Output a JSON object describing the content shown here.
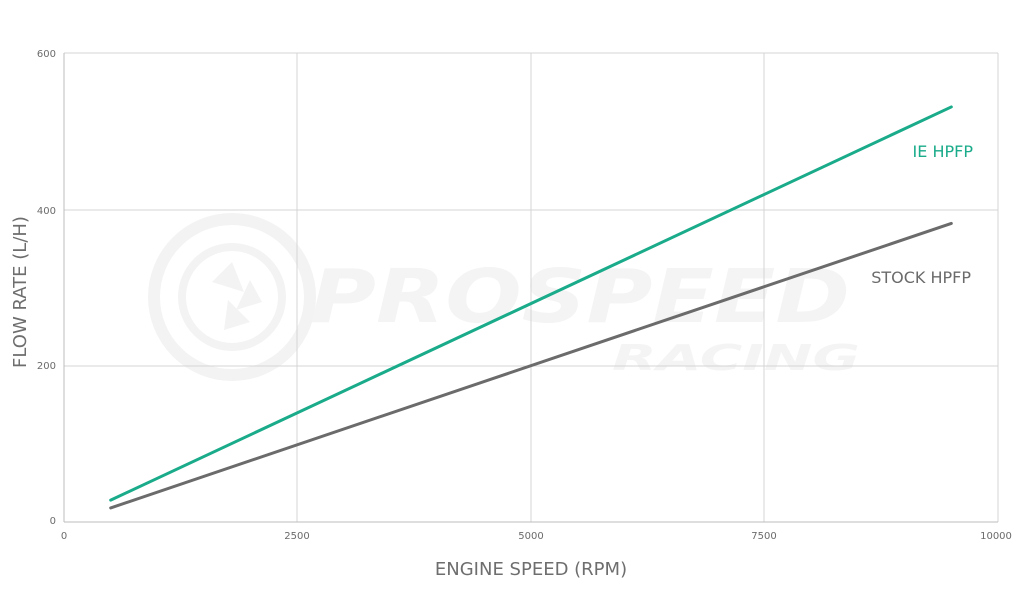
{
  "chart_data": {
    "type": "line",
    "title": "",
    "xlabel": "ENGINE SPEED (RPM)",
    "ylabel": "FLOW RATE (L/H)",
    "xlim": [
      0,
      10000
    ],
    "ylim": [
      0,
      600
    ],
    "x_ticks": [
      "0",
      "2500",
      "5000",
      "7500",
      "10000"
    ],
    "y_ticks": [
      "0",
      "200",
      "400",
      "600"
    ],
    "grid": true,
    "legend": "inline labels at right",
    "series": [
      {
        "name": "IE HPFP",
        "color": "#1aab8a",
        "x": [
          500,
          9500
        ],
        "y": [
          28,
          531
        ]
      },
      {
        "name": "STOCK HPFP",
        "color": "#6b6b6b",
        "x": [
          500,
          9500
        ],
        "y": [
          18,
          382
        ]
      }
    ]
  },
  "watermark": {
    "logo": "turbo-logo",
    "text": "PROSPEED",
    "subtext": "RACING"
  },
  "colors": {
    "grid": "#d4d4d4",
    "axis": "#bdbdbd"
  }
}
